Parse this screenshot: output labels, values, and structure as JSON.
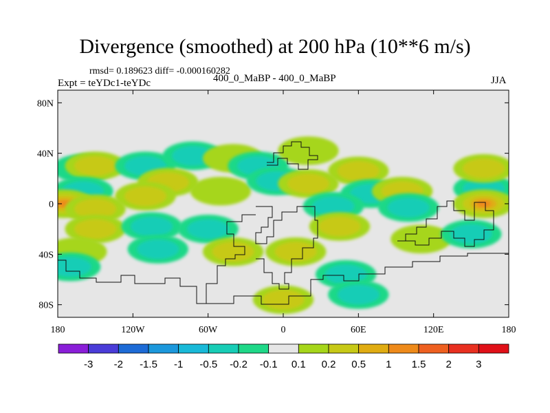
{
  "chart_data": {
    "type": "heatmap",
    "title": "Divergence (smoothed) at 200 hPa (10**6 m/s)",
    "stats_label": "rmsd= 0.189623 diff= -0.000160282",
    "left_label": "Expt = teYDc1-teYDc",
    "center_label": "400_0_MaBP - 400_0_MaBP",
    "right_label": "JJA",
    "x_axis": {
      "range": [
        -180,
        180
      ],
      "ticks": [
        -180,
        -120,
        -60,
        0,
        60,
        120,
        180
      ],
      "tick_labels": [
        "180",
        "120W",
        "60W",
        "0",
        "60E",
        "120E",
        "180"
      ]
    },
    "y_axis": {
      "range": [
        -90,
        90
      ],
      "ticks": [
        80,
        40,
        0,
        -40,
        -80
      ],
      "tick_labels": [
        "80N",
        "40N",
        "0",
        "40S",
        "80S"
      ]
    },
    "colorbar": {
      "levels": [
        "-3",
        "-2",
        "-1.5",
        "-1",
        "-0.5",
        "-0.2",
        "-0.1",
        "0.1",
        "0.2",
        "0.5",
        "1",
        "1.5",
        "2",
        "3"
      ],
      "colors": [
        "#8a1ed8",
        "#4a3cd8",
        "#1d6bd6",
        "#1c98dc",
        "#19b9d8",
        "#18cdb6",
        "#1fd888",
        "#e6e6e6",
        "#a6d61a",
        "#c7c917",
        "#e0ac12",
        "#ee8a1a",
        "#ee6020",
        "#e83020",
        "#e01018"
      ]
    },
    "fields": [
      {
        "lon": -160,
        "lat": 28,
        "level": -0.25
      },
      {
        "lon": -150,
        "lat": 30,
        "level": 0.35
      },
      {
        "lon": -110,
        "lat": 30,
        "level": -0.3
      },
      {
        "lon": -72,
        "lat": 38,
        "level": -0.3
      },
      {
        "lon": -92,
        "lat": 17,
        "level": 0.5
      },
      {
        "lon": -40,
        "lat": 36,
        "level": 0.25
      },
      {
        "lon": -20,
        "lat": 30,
        "level": -0.3
      },
      {
        "lon": 20,
        "lat": 42,
        "level": 0.25
      },
      {
        "lon": -160,
        "lat": 10,
        "level": -0.3
      },
      {
        "lon": -110,
        "lat": 6,
        "level": 0.3
      },
      {
        "lon": -50,
        "lat": 10,
        "level": 0.25
      },
      {
        "lon": -5,
        "lat": 18,
        "level": -0.3
      },
      {
        "lon": 20,
        "lat": 16,
        "level": 0.5
      },
      {
        "lon": 60,
        "lat": 26,
        "level": 0.3
      },
      {
        "lon": 70,
        "lat": 8,
        "level": -0.6
      },
      {
        "lon": 95,
        "lat": 10,
        "level": 0.4
      },
      {
        "lon": 160,
        "lat": 12,
        "level": -0.4
      },
      {
        "lon": 160,
        "lat": 28,
        "level": 0.3
      },
      {
        "lon": -175,
        "lat": 0,
        "level": 1.2
      },
      {
        "lon": -150,
        "lat": -4,
        "level": 0.3
      },
      {
        "lon": 40,
        "lat": -2,
        "level": -0.3
      },
      {
        "lon": 100,
        "lat": -3,
        "level": -0.4
      },
      {
        "lon": 160,
        "lat": 0,
        "level": 1.2
      },
      {
        "lon": -150,
        "lat": -20,
        "level": 0.3
      },
      {
        "lon": -105,
        "lat": -18,
        "level": -0.3
      },
      {
        "lon": -60,
        "lat": -20,
        "level": -0.3
      },
      {
        "lon": 45,
        "lat": -18,
        "level": 0.35
      },
      {
        "lon": 110,
        "lat": -28,
        "level": 0.25
      },
      {
        "lon": 150,
        "lat": -24,
        "level": -0.3
      },
      {
        "lon": -165,
        "lat": -38,
        "level": 0.25
      },
      {
        "lon": -100,
        "lat": -36,
        "level": -0.3
      },
      {
        "lon": -40,
        "lat": -38,
        "level": 0.3
      },
      {
        "lon": 10,
        "lat": -38,
        "level": 0.3
      },
      {
        "lon": -170,
        "lat": -50,
        "level": -0.3
      },
      {
        "lon": 50,
        "lat": -56,
        "level": -0.3
      },
      {
        "lon": 60,
        "lat": -72,
        "level": -0.3
      },
      {
        "lon": 0,
        "lat": -76,
        "level": 0.3
      }
    ]
  }
}
